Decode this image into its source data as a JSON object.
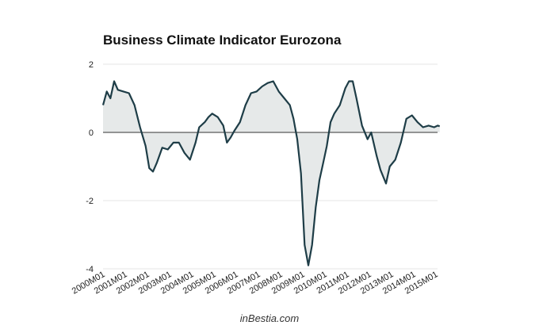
{
  "chart_data": {
    "type": "area",
    "title": "Business Climate Indicator Eurozona",
    "xlabel": "",
    "ylabel": "",
    "ylim": [
      -4,
      2
    ],
    "yticks": [
      2,
      0,
      -2,
      -4
    ],
    "grid": true,
    "xtick_labels": [
      "2000M01",
      "2001M01",
      "2002M01",
      "2003M01",
      "2004M01",
      "2005M01",
      "2006M01",
      "2007M01",
      "2008M01",
      "2009M01",
      "2010M01",
      "2011M01",
      "2012M01",
      "2013M01",
      "2014M01",
      "2015M01"
    ],
    "series": [
      {
        "points": [
          [
            "2000M01",
            0.8
          ],
          [
            "2000M03",
            1.2
          ],
          [
            "2000M05",
            1.0
          ],
          [
            "2000M07",
            1.5
          ],
          [
            "2000M09",
            1.25
          ],
          [
            "2000M12",
            1.2
          ],
          [
            "2001M03",
            1.15
          ],
          [
            "2001M06",
            0.8
          ],
          [
            "2001M09",
            0.15
          ],
          [
            "2001M12",
            -0.4
          ],
          [
            "2002M02",
            -1.05
          ],
          [
            "2002M04",
            -1.15
          ],
          [
            "2002M06",
            -0.9
          ],
          [
            "2002M09",
            -0.45
          ],
          [
            "2002M12",
            -0.5
          ],
          [
            "2003M03",
            -0.3
          ],
          [
            "2003M06",
            -0.3
          ],
          [
            "2003M09",
            -0.6
          ],
          [
            "2003M12",
            -0.8
          ],
          [
            "2004M03",
            -0.3
          ],
          [
            "2004M05",
            0.15
          ],
          [
            "2004M08",
            0.3
          ],
          [
            "2004M10",
            0.45
          ],
          [
            "2004M12",
            0.55
          ],
          [
            "2005M03",
            0.45
          ],
          [
            "2005M06",
            0.2
          ],
          [
            "2005M08",
            -0.3
          ],
          [
            "2005M10",
            -0.15
          ],
          [
            "2005M12",
            0.05
          ],
          [
            "2006M03",
            0.3
          ],
          [
            "2006M06",
            0.8
          ],
          [
            "2006M09",
            1.15
          ],
          [
            "2006M12",
            1.2
          ],
          [
            "2007M03",
            1.35
          ],
          [
            "2007M06",
            1.45
          ],
          [
            "2007M09",
            1.5
          ],
          [
            "2007M12",
            1.2
          ],
          [
            "2008M03",
            1.0
          ],
          [
            "2008M06",
            0.8
          ],
          [
            "2008M08",
            0.4
          ],
          [
            "2008M10",
            -0.2
          ],
          [
            "2008M12",
            -1.2
          ],
          [
            "2009M02",
            -3.3
          ],
          [
            "2009M04",
            -3.9
          ],
          [
            "2009M06",
            -3.3
          ],
          [
            "2009M08",
            -2.2
          ],
          [
            "2009M10",
            -1.4
          ],
          [
            "2009M12",
            -0.9
          ],
          [
            "2010M02",
            -0.4
          ],
          [
            "2010M04",
            0.3
          ],
          [
            "2010M06",
            0.55
          ],
          [
            "2010M09",
            0.8
          ],
          [
            "2010M12",
            1.3
          ],
          [
            "2011M02",
            1.5
          ],
          [
            "2011M04",
            1.5
          ],
          [
            "2011M06",
            1.0
          ],
          [
            "2011M09",
            0.2
          ],
          [
            "2011M12",
            -0.2
          ],
          [
            "2012M02",
            0.0
          ],
          [
            "2012M05",
            -0.7
          ],
          [
            "2012M07",
            -1.1
          ],
          [
            "2012M10",
            -1.5
          ],
          [
            "2012M12",
            -1.0
          ],
          [
            "2013M03",
            -0.8
          ],
          [
            "2013M06",
            -0.3
          ],
          [
            "2013M09",
            0.4
          ],
          [
            "2013M12",
            0.5
          ],
          [
            "2014M03",
            0.3
          ],
          [
            "2014M06",
            0.15
          ],
          [
            "2014M09",
            0.2
          ],
          [
            "2014M12",
            0.15
          ],
          [
            "2015M02",
            0.2
          ],
          [
            "2015M03",
            0.18
          ]
        ]
      }
    ]
  },
  "footer": {
    "credit": "inBestia.com"
  },
  "colors": {
    "line": "#1e3d47",
    "fill": "#e6e9e9",
    "axis": "#333333",
    "grid": "#e4e4e4"
  }
}
